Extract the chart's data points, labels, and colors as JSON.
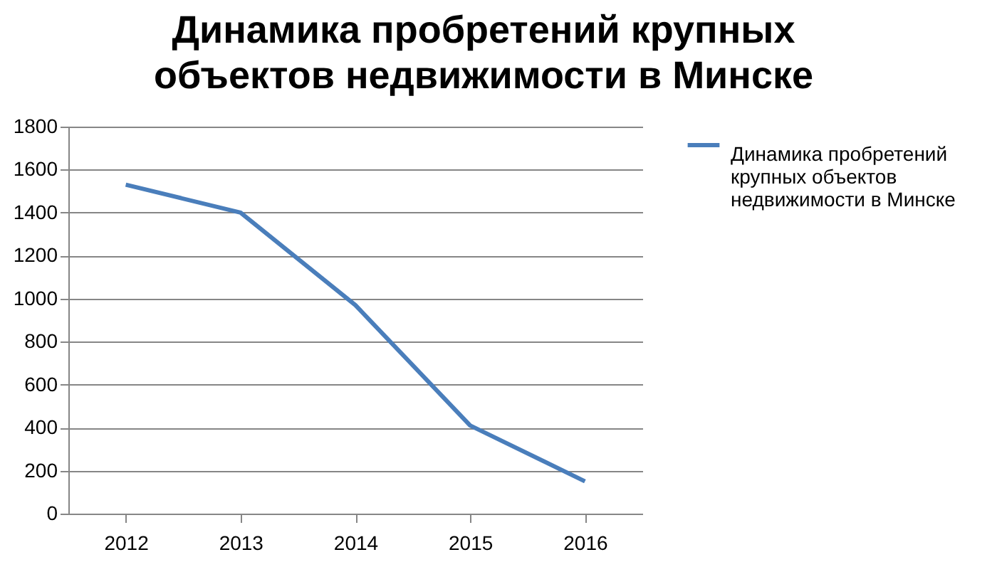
{
  "chart_data": {
    "type": "line",
    "title": "Динамика  пробретений крупных объектов недвижимости в Минске",
    "categories": [
      "2012",
      "2013",
      "2014",
      "2015",
      "2016"
    ],
    "series": [
      {
        "name": "Динамика  пробретений крупных объектов недвижимости в Минске",
        "color": "#4a7ebb",
        "values": [
          1530,
          1400,
          970,
          410,
          150
        ]
      }
    ],
    "ylim": [
      0,
      1800
    ],
    "yticks": [
      0,
      200,
      400,
      600,
      800,
      1000,
      1200,
      1400,
      1600,
      1800
    ],
    "grid": "y",
    "legend": "right",
    "marker": "none",
    "line_style": "solid"
  }
}
